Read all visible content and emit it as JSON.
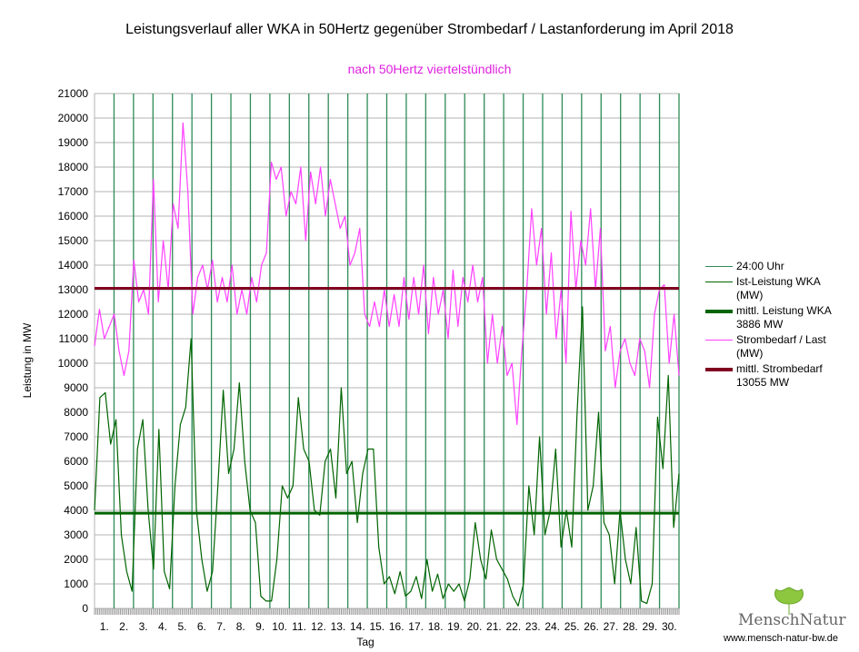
{
  "chart_data": {
    "type": "line",
    "title": "Leistungsverlauf aller WKA in 50Hertz gegenüber  Strombedarf / Lastanforderung im April 2018",
    "subtitle": "nach 50Hertz viertelstündlich",
    "xlabel": "Tag",
    "ylabel": "Leistung in MW",
    "ylim": [
      0,
      21000
    ],
    "yticks": [
      0,
      1000,
      2000,
      3000,
      4000,
      5000,
      6000,
      7000,
      8000,
      9000,
      10000,
      11000,
      12000,
      13000,
      14000,
      15000,
      16000,
      17000,
      18000,
      19000,
      20000,
      21000
    ],
    "xticks": [
      "1.",
      "2.",
      "3.",
      "4.",
      "5.",
      "6.",
      "7.",
      "8.",
      "9.",
      "10.",
      "11.",
      "12.",
      "13.",
      "14.",
      "15.",
      "16.",
      "17.",
      "18.",
      "19.",
      "20.",
      "21.",
      "22.",
      "23.",
      "24.",
      "25.",
      "26.",
      "27.",
      "28.",
      "29.",
      "30."
    ],
    "grid": true,
    "legend_position": "right",
    "series": [
      {
        "name": "24:00 Uhr",
        "color": "#2e8b57",
        "kind": "day-boundary"
      },
      {
        "name": "Ist-Leistung WKA (MW)",
        "color": "#006400",
        "values": [
          4000,
          8600,
          8800,
          6700,
          7700,
          3000,
          1500,
          700,
          6500,
          7700,
          4000,
          1600,
          7300,
          1500,
          800,
          5000,
          7500,
          8200,
          11000,
          4000,
          2000,
          700,
          1500,
          5000,
          8900,
          5500,
          6500,
          9200,
          6000,
          4000,
          3500,
          500,
          300,
          300,
          2000,
          5000,
          4500,
          5000,
          8600,
          6500,
          6000,
          4000,
          3800,
          6000,
          6500,
          4500,
          9000,
          5500,
          6000,
          3500,
          5500,
          6500,
          6500,
          2500,
          1000,
          1300,
          600,
          1500,
          500,
          700,
          1300,
          400,
          2000,
          700,
          1400,
          400,
          1000,
          700,
          1000,
          300,
          1200,
          3500,
          2000,
          1200,
          3200,
          2000,
          1600,
          1200,
          500,
          100,
          1000,
          5000,
          3000,
          7000,
          3000,
          4000,
          6500,
          2500,
          4000,
          2500,
          8000,
          12300,
          4000,
          5000,
          8000,
          3500,
          3000,
          1000,
          4000,
          2000,
          1000,
          3300,
          300,
          200,
          1000,
          7800,
          5700,
          9500,
          3300,
          5500
        ]
      },
      {
        "name": "mittl. Leistung WKA 3886 MW",
        "color": "#006400",
        "value": 3886
      },
      {
        "name": "Strombedarf / Last (MW)",
        "color": "#ff40ff",
        "values": [
          10700,
          12200,
          11000,
          11500,
          12000,
          10500,
          9500,
          10500,
          14200,
          12500,
          13000,
          12000,
          17500,
          12500,
          15000,
          13000,
          16500,
          15500,
          19800,
          17000,
          12000,
          13500,
          14000,
          13000,
          14200,
          12500,
          13500,
          12500,
          14000,
          12000,
          13000,
          12000,
          13500,
          12500,
          14000,
          14500,
          18200,
          17500,
          18000,
          16000,
          17000,
          16500,
          18000,
          15000,
          17800,
          16500,
          18000,
          16000,
          17500,
          16500,
          15500,
          16000,
          14000,
          14500,
          15500,
          12000,
          11500,
          12500,
          11500,
          13000,
          11500,
          12800,
          11500,
          13500,
          11800,
          13500,
          12000,
          14000,
          11200,
          13500,
          12000,
          13000,
          11000,
          13800,
          11500,
          13500,
          12500,
          14000,
          12500,
          13500,
          10000,
          12000,
          10000,
          11500,
          9500,
          10000,
          7500,
          10500,
          13000,
          16300,
          14000,
          15500,
          12000,
          14500,
          11000,
          13000,
          10000,
          16200,
          13000,
          15000,
          14000,
          16300,
          13000,
          15500,
          10500,
          11500,
          9000,
          10500,
          11000,
          10000,
          9500,
          11000,
          10500,
          9000,
          12000,
          13000,
          13200,
          10000,
          12000,
          9500
        ]
      },
      {
        "name": "mittl. Strombedarf 13055 MW",
        "color": "#800020",
        "value": 13055
      }
    ]
  },
  "legend": {
    "day_line": "24:00 Uhr",
    "wka_1": "Ist-Leistung WKA",
    "wka_2": "(MW)",
    "wka_mean_1": "mittl. Leistung WKA",
    "wka_mean_2": "3886 MW",
    "load_1": "Strombedarf / Last",
    "load_2": "(MW)",
    "load_mean_1": "mittl. Strombedarf",
    "load_mean_2": "13055 MW"
  },
  "logo": {
    "name": "MenschNatur",
    "url": "www.mensch-natur-bw.de"
  }
}
